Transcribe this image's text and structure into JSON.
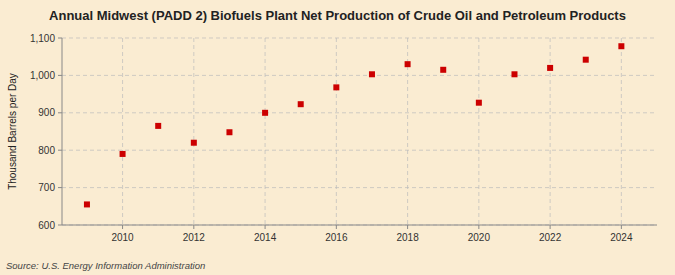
{
  "chart_data": {
    "type": "scatter",
    "title": "Annual Midwest (PADD 2) Biofuels Plant Net Production of Crude Oil and Petroleum Products",
    "ylabel": "Thousand Barrels per Day",
    "source": "Source: U.S. Energy Information Administration",
    "x": [
      2009,
      2010,
      2011,
      2012,
      2013,
      2014,
      2015,
      2016,
      2017,
      2018,
      2019,
      2020,
      2021,
      2022,
      2023,
      2024
    ],
    "values": [
      655,
      790,
      865,
      820,
      848,
      900,
      923,
      968,
      1003,
      1030,
      1015,
      927,
      1003,
      1020,
      1042,
      1078
    ],
    "color": "#cc0000",
    "marker": "square",
    "xlim": [
      2008.3,
      2025.0
    ],
    "xticks": [
      2010,
      2012,
      2014,
      2016,
      2018,
      2020,
      2022,
      2024
    ],
    "ylim": [
      600,
      1100
    ],
    "yticks": [
      600,
      700,
      800,
      900,
      {
        "value": 1000,
        "label": "1,000"
      },
      {
        "value": 1100,
        "label": "1,100"
      }
    ],
    "grid": true
  }
}
